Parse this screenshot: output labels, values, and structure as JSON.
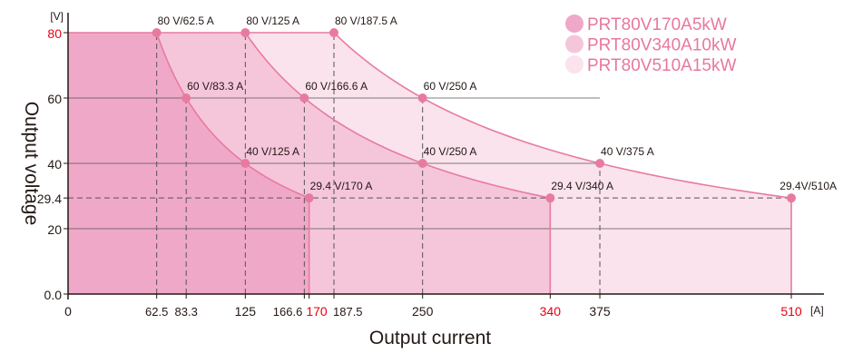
{
  "chart_data": {
    "type": "area",
    "xlabel": "Output current",
    "ylabel": "Output voltage",
    "xunit": "[A]",
    "yunit": "[V]",
    "xlim": [
      0,
      510
    ],
    "ylim": [
      0,
      80
    ],
    "x_ticks": [
      {
        "value": 0,
        "label": "0",
        "highlight": false
      },
      {
        "value": 62.5,
        "label": "62.5",
        "highlight": false
      },
      {
        "value": 83.3,
        "label": "83.3",
        "highlight": false
      },
      {
        "value": 125,
        "label": "125",
        "highlight": false
      },
      {
        "value": 166.6,
        "label": "166.6",
        "highlight": false
      },
      {
        "value": 170,
        "label": "170",
        "highlight": true
      },
      {
        "value": 187.5,
        "label": "187.5",
        "highlight": false
      },
      {
        "value": 250,
        "label": "250",
        "highlight": false
      },
      {
        "value": 340,
        "label": "340",
        "highlight": true
      },
      {
        "value": 375,
        "label": "375",
        "highlight": false
      },
      {
        "value": 510,
        "label": "510",
        "highlight": true
      }
    ],
    "y_ticks": [
      {
        "value": 0,
        "label": "0.0",
        "highlight": false
      },
      {
        "value": 20,
        "label": "20",
        "highlight": false
      },
      {
        "value": 29.4,
        "label": "29.4",
        "highlight": false
      },
      {
        "value": 40,
        "label": "40",
        "highlight": false
      },
      {
        "value": 60,
        "label": "60",
        "highlight": false
      },
      {
        "value": 80,
        "label": "80",
        "highlight": true
      }
    ],
    "series": [
      {
        "name": "PRT80V170A5kW",
        "power_w": 5000,
        "max_current": 170,
        "min_voltage_at_max_current": 29.4,
        "color": "#f0a8c8",
        "points": [
          {
            "v": 80,
            "a": 62.5,
            "label": "80 V/62.5 A"
          },
          {
            "v": 60,
            "a": 83.3,
            "label": "60 V/83.3 A"
          },
          {
            "v": 40,
            "a": 125,
            "label": "40 V/125 A"
          },
          {
            "v": 29.4,
            "a": 170,
            "label": "29.4 V/170 A"
          }
        ]
      },
      {
        "name": "PRT80V340A10kW",
        "power_w": 10000,
        "max_current": 340,
        "min_voltage_at_max_current": 29.4,
        "color": "#f5c6da",
        "points": [
          {
            "v": 80,
            "a": 125,
            "label": "80 V/125 A"
          },
          {
            "v": 60,
            "a": 166.6,
            "label": "60 V/166.6 A"
          },
          {
            "v": 40,
            "a": 250,
            "label": "40 V/250 A"
          },
          {
            "v": 29.4,
            "a": 340,
            "label": "29.4 V/340 A"
          }
        ]
      },
      {
        "name": "PRT80V510A15kW",
        "power_w": 15000,
        "max_current": 510,
        "min_voltage_at_max_current": 29.4,
        "color": "#fae3ec",
        "points": [
          {
            "v": 80,
            "a": 187.5,
            "label": "80 V/187.5 A"
          },
          {
            "v": 60,
            "a": 250,
            "label": "60 V/250 A"
          },
          {
            "v": 40,
            "a": 375,
            "label": "40 V/375 A"
          },
          {
            "v": 29.4,
            "a": 510,
            "label": "29.4V/510A"
          }
        ]
      }
    ],
    "curve_color": "#e87aa0",
    "highlight_color": "#e60012",
    "legend_placement": "top-right",
    "grid": "horizontal solid at 20/40/60, dashed guides at marked points"
  }
}
